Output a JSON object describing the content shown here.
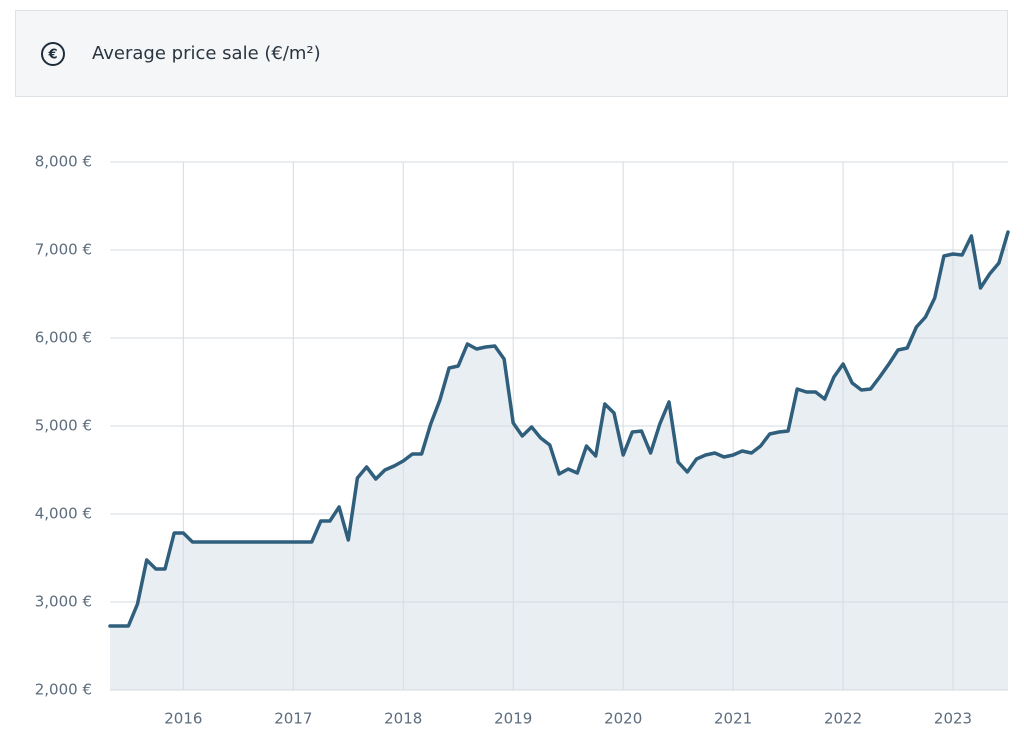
{
  "header": {
    "icon": "€",
    "title": "Average price sale (€/m²)"
  },
  "chart_data": {
    "type": "area",
    "color": "#2f5f7c",
    "fill": "#e9eef3",
    "grid": true,
    "x": [
      2015.333,
      2015.417,
      2015.5,
      2015.583,
      2015.667,
      2015.75,
      2015.833,
      2015.917,
      2016,
      2016.083,
      2016.167,
      2016.25,
      2016.333,
      2016.417,
      2016.5,
      2016.583,
      2016.667,
      2016.75,
      2016.833,
      2016.917,
      2017,
      2017.083,
      2017.167,
      2017.25,
      2017.333,
      2017.417,
      2017.5,
      2017.583,
      2017.667,
      2017.75,
      2017.833,
      2017.917,
      2018,
      2018.083,
      2018.167,
      2018.25,
      2018.333,
      2018.417,
      2018.5,
      2018.583,
      2018.667,
      2018.75,
      2018.833,
      2018.917,
      2019,
      2019.083,
      2019.167,
      2019.25,
      2019.333,
      2019.417,
      2019.5,
      2019.583,
      2019.667,
      2019.75,
      2019.833,
      2019.917,
      2020,
      2020.083,
      2020.167,
      2020.25,
      2020.333,
      2020.417,
      2020.5,
      2020.583,
      2020.667,
      2020.75,
      2020.833,
      2020.917,
      2021,
      2021.083,
      2021.167,
      2021.25,
      2021.333,
      2021.417,
      2021.5,
      2021.583,
      2021.667,
      2021.75,
      2021.833,
      2021.917,
      2022,
      2022.083,
      2022.167,
      2022.25,
      2022.333,
      2022.417,
      2022.5,
      2022.583,
      2022.667,
      2022.75,
      2022.833,
      2022.917,
      2023,
      2023.083,
      2023.167,
      2023.25,
      2023.333,
      2023.417,
      2023.5
    ],
    "values": [
      2727,
      2727,
      2727,
      2977,
      3477,
      3375,
      3375,
      3784,
      3784,
      3682,
      3682,
      3682,
      3682,
      3682,
      3682,
      3682,
      3682,
      3682,
      3682,
      3682,
      3682,
      3682,
      3682,
      3920,
      3920,
      4080,
      3705,
      4409,
      4534,
      4398,
      4500,
      4545,
      4602,
      4682,
      4682,
      5023,
      5295,
      5659,
      5682,
      5932,
      5875,
      5898,
      5909,
      5761,
      5034,
      4886,
      4989,
      4864,
      4784,
      4455,
      4511,
      4466,
      4773,
      4659,
      5250,
      5148,
      4670,
      4932,
      4943,
      4693,
      5023,
      5273,
      4591,
      4477,
      4625,
      4670,
      4693,
      4648,
      4670,
      4716,
      4693,
      4773,
      4909,
      4932,
      4943,
      5420,
      5386,
      5386,
      5307,
      5557,
      5705,
      5489,
      5409,
      5420,
      5557,
      5705,
      5864,
      5886,
      6125,
      6239,
      6455,
      6932,
      6955,
      6943,
      7159,
      6568,
      6727,
      6852,
      7205
    ],
    "xlim": [
      2015.333,
      2023.5
    ],
    "xticks": [
      2016,
      2017,
      2018,
      2019,
      2020,
      2021,
      2022,
      2023
    ],
    "ylim": [
      2000,
      8000
    ],
    "yticks": [
      {
        "value": 2000,
        "label": "2,000 €"
      },
      {
        "value": 3000,
        "label": "3,000 €"
      },
      {
        "value": 4000,
        "label": "4,000 €"
      },
      {
        "value": 5000,
        "label": "5,000 €"
      },
      {
        "value": 6000,
        "label": "6,000 €"
      },
      {
        "value": 7000,
        "label": "7,000 €"
      },
      {
        "value": 8000,
        "label": "8,000 €"
      }
    ]
  }
}
